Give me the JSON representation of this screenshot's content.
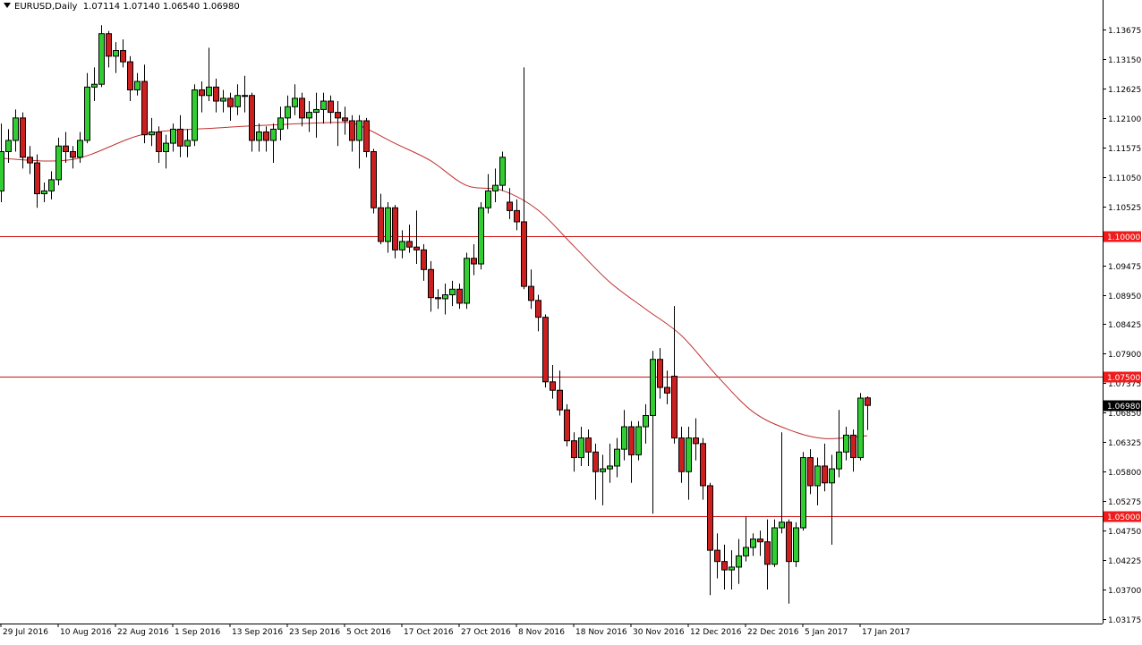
{
  "header": {
    "symbol": "EURUSD,Daily",
    "ohlc": "1.07114 1.07140 1.06540 1.06980"
  },
  "colors": {
    "bull": "#32cd32",
    "bear": "#cc2020",
    "ma": "#c03030",
    "level_line": "#cc1010",
    "current_price_bg": "#000000"
  },
  "chart_data": {
    "type": "candlestick",
    "title": "EURUSD,Daily",
    "ylim": [
      1.0305,
      1.1415
    ],
    "y_ticks": [
      "1.13675",
      "1.13150",
      "1.12625",
      "1.12100",
      "1.11575",
      "1.11050",
      "1.10525",
      "1.09475",
      "1.08950",
      "1.08425",
      "1.07900",
      "1.07375",
      "1.06850",
      "1.06325",
      "1.05800",
      "1.05275",
      "1.04750",
      "1.04225",
      "1.03700",
      "1.03175"
    ],
    "x_labels": [
      {
        "i": 0,
        "label": "29 Jul 2016"
      },
      {
        "i": 8,
        "label": "10 Aug 2016"
      },
      {
        "i": 16,
        "label": "22 Aug 2016"
      },
      {
        "i": 24,
        "label": "1 Sep 2016"
      },
      {
        "i": 32,
        "label": "13 Sep 2016"
      },
      {
        "i": 40,
        "label": "23 Sep 2016"
      },
      {
        "i": 48,
        "label": "5 Oct 2016"
      },
      {
        "i": 56,
        "label": "17 Oct 2016"
      },
      {
        "i": 64,
        "label": "27 Oct 2016"
      },
      {
        "i": 72,
        "label": "8 Nov 2016"
      },
      {
        "i": 80,
        "label": "18 Nov 2016"
      },
      {
        "i": 88,
        "label": "30 Nov 2016"
      },
      {
        "i": 96,
        "label": "12 Dec 2016"
      },
      {
        "i": 104,
        "label": "22 Dec 2016"
      },
      {
        "i": 112,
        "label": "5 Jan 2017"
      },
      {
        "i": 120,
        "label": "17 Jan 2017"
      }
    ],
    "levels": [
      {
        "value": 1.1,
        "label": "1.10000"
      },
      {
        "value": 1.075,
        "label": "1.07500"
      },
      {
        "value": 1.05,
        "label": "1.05000"
      }
    ],
    "current_price": {
      "value": 1.0698,
      "label": "1.06980"
    },
    "candles_ohlc": [
      [
        1.108,
        1.12,
        1.106,
        1.115
      ],
      [
        1.115,
        1.119,
        1.113,
        1.117
      ],
      [
        1.117,
        1.1225,
        1.115,
        1.121
      ],
      [
        1.121,
        1.122,
        1.112,
        1.114
      ],
      [
        1.114,
        1.116,
        1.111,
        1.113
      ],
      [
        1.113,
        1.1145,
        1.105,
        1.1075
      ],
      [
        1.1075,
        1.1095,
        1.106,
        1.108
      ],
      [
        1.108,
        1.1115,
        1.1065,
        1.11
      ],
      [
        1.11,
        1.1175,
        1.109,
        1.116
      ],
      [
        1.116,
        1.1185,
        1.113,
        1.115
      ],
      [
        1.115,
        1.116,
        1.112,
        1.114
      ],
      [
        1.114,
        1.1185,
        1.113,
        1.117
      ],
      [
        1.117,
        1.129,
        1.1165,
        1.1265
      ],
      [
        1.1265,
        1.13,
        1.124,
        1.127
      ],
      [
        1.127,
        1.1375,
        1.1265,
        1.136
      ],
      [
        1.136,
        1.1365,
        1.13,
        1.132
      ],
      [
        1.132,
        1.1345,
        1.129,
        1.133
      ],
      [
        1.133,
        1.135,
        1.13,
        1.131
      ],
      [
        1.131,
        1.132,
        1.124,
        1.126
      ],
      [
        1.126,
        1.129,
        1.125,
        1.1275
      ],
      [
        1.1275,
        1.1305,
        1.1165,
        1.118
      ],
      [
        1.118,
        1.121,
        1.116,
        1.1185
      ],
      [
        1.1185,
        1.1195,
        1.113,
        1.115
      ],
      [
        1.115,
        1.118,
        1.112,
        1.1165
      ],
      [
        1.1165,
        1.12,
        1.115,
        1.119
      ],
      [
        1.119,
        1.1215,
        1.114,
        1.116
      ],
      [
        1.116,
        1.119,
        1.114,
        1.117
      ],
      [
        1.117,
        1.127,
        1.116,
        1.126
      ],
      [
        1.126,
        1.1275,
        1.122,
        1.125
      ],
      [
        1.125,
        1.1335,
        1.124,
        1.1265
      ],
      [
        1.1265,
        1.128,
        1.122,
        1.124
      ],
      [
        1.124,
        1.126,
        1.122,
        1.1245
      ],
      [
        1.1245,
        1.1255,
        1.1205,
        1.123
      ],
      [
        1.123,
        1.127,
        1.1215,
        1.125
      ],
      [
        1.125,
        1.1285,
        1.122,
        1.125
      ],
      [
        1.125,
        1.1255,
        1.115,
        1.117
      ],
      [
        1.117,
        1.12,
        1.115,
        1.1185
      ],
      [
        1.1185,
        1.1195,
        1.115,
        1.117
      ],
      [
        1.117,
        1.12,
        1.113,
        1.119
      ],
      [
        1.119,
        1.123,
        1.117,
        1.121
      ],
      [
        1.121,
        1.125,
        1.119,
        1.123
      ],
      [
        1.123,
        1.127,
        1.1215,
        1.1245
      ],
      [
        1.1245,
        1.1255,
        1.1195,
        1.121
      ],
      [
        1.121,
        1.124,
        1.1185,
        1.122
      ],
      [
        1.122,
        1.1255,
        1.1175,
        1.1225
      ],
      [
        1.1225,
        1.1255,
        1.12,
        1.124
      ],
      [
        1.124,
        1.125,
        1.12,
        1.122
      ],
      [
        1.122,
        1.124,
        1.116,
        1.121
      ],
      [
        1.121,
        1.123,
        1.118,
        1.1205
      ],
      [
        1.1205,
        1.1215,
        1.115,
        1.117
      ],
      [
        1.117,
        1.1215,
        1.112,
        1.1205
      ],
      [
        1.1205,
        1.121,
        1.114,
        1.115
      ],
      [
        1.115,
        1.1155,
        1.104,
        1.105
      ],
      [
        1.105,
        1.1075,
        1.0985,
        1.099
      ],
      [
        1.099,
        1.106,
        1.097,
        1.105
      ],
      [
        1.105,
        1.1055,
        1.096,
        1.0975
      ],
      [
        1.0975,
        1.101,
        1.096,
        1.099
      ],
      [
        1.099,
        1.102,
        1.097,
        1.098
      ],
      [
        1.098,
        1.1045,
        1.095,
        1.0975
      ],
      [
        1.0975,
        1.0985,
        1.092,
        1.094
      ],
      [
        1.094,
        1.0955,
        1.0865,
        1.089
      ],
      [
        1.089,
        1.0905,
        1.087,
        1.0888
      ],
      [
        1.0888,
        1.0915,
        1.086,
        1.0895
      ],
      [
        1.0895,
        1.092,
        1.0875,
        1.0905
      ],
      [
        1.0905,
        1.0915,
        1.087,
        1.088
      ],
      [
        1.088,
        1.097,
        1.087,
        1.096
      ],
      [
        1.096,
        1.0985,
        1.093,
        1.095
      ],
      [
        1.095,
        1.106,
        1.094,
        1.105
      ],
      [
        1.105,
        1.111,
        1.104,
        1.108
      ],
      [
        1.108,
        1.112,
        1.106,
        1.109
      ],
      [
        1.109,
        1.115,
        1.108,
        1.114
      ],
      [
        1.106,
        1.1085,
        1.103,
        1.1045
      ],
      [
        1.1045,
        1.1065,
        1.101,
        1.1025
      ],
      [
        1.1025,
        1.13,
        1.0905,
        1.091
      ],
      [
        1.091,
        1.094,
        1.087,
        1.0885
      ],
      [
        1.0885,
        1.0895,
        1.083,
        1.0855
      ],
      [
        1.0855,
        1.086,
        1.073,
        1.074
      ],
      [
        1.074,
        1.077,
        1.071,
        1.0725
      ],
      [
        1.0725,
        1.076,
        1.068,
        1.069
      ],
      [
        1.069,
        1.07,
        1.0625,
        1.0635
      ],
      [
        1.0635,
        1.065,
        1.058,
        1.0605
      ],
      [
        1.0605,
        1.066,
        1.059,
        1.064
      ],
      [
        1.064,
        1.0655,
        1.059,
        1.0615
      ],
      [
        1.0615,
        1.063,
        1.053,
        1.058
      ],
      [
        1.058,
        1.061,
        1.052,
        1.0585
      ],
      [
        1.0585,
        1.063,
        1.056,
        1.059
      ],
      [
        1.059,
        1.064,
        1.057,
        1.062
      ],
      [
        1.062,
        1.069,
        1.06,
        1.066
      ],
      [
        1.066,
        1.067,
        1.056,
        1.061
      ],
      [
        1.061,
        1.067,
        1.06,
        1.066
      ],
      [
        1.066,
        1.07,
        1.063,
        1.068
      ],
      [
        1.068,
        1.0795,
        1.0505,
        1.078
      ],
      [
        1.078,
        1.08,
        1.071,
        1.073
      ],
      [
        1.073,
        1.076,
        1.07,
        1.072
      ],
      [
        1.075,
        1.0875,
        1.063,
        1.064
      ],
      [
        1.064,
        1.066,
        1.056,
        1.058
      ],
      [
        1.058,
        1.066,
        1.053,
        1.064
      ],
      [
        1.064,
        1.0675,
        1.06,
        1.063
      ],
      [
        1.063,
        1.064,
        1.053,
        1.0555
      ],
      [
        1.0555,
        1.056,
        1.036,
        1.044
      ],
      [
        1.044,
        1.047,
        1.039,
        1.042
      ],
      [
        1.042,
        1.045,
        1.037,
        1.0405
      ],
      [
        1.0405,
        1.044,
        1.037,
        1.041
      ],
      [
        1.041,
        1.046,
        1.038,
        1.043
      ],
      [
        1.043,
        1.05,
        1.042,
        1.0445
      ],
      [
        1.0445,
        1.047,
        1.043,
        1.046
      ],
      [
        1.046,
        1.0475,
        1.043,
        1.0455
      ],
      [
        1.0455,
        1.0495,
        1.037,
        1.0415
      ],
      [
        1.0415,
        1.0495,
        1.041,
        1.048
      ],
      [
        1.048,
        1.065,
        1.047,
        1.049
      ],
      [
        1.049,
        1.0495,
        1.0345,
        1.042
      ],
      [
        1.042,
        1.049,
        1.041,
        1.048
      ],
      [
        1.048,
        1.0615,
        1.0475,
        1.0605
      ],
      [
        1.0605,
        1.062,
        1.054,
        1.0555
      ],
      [
        1.0555,
        1.0605,
        1.052,
        1.059
      ],
      [
        1.059,
        1.063,
        1.0545,
        1.056
      ],
      [
        1.056,
        1.061,
        1.045,
        1.0585
      ],
      [
        1.0585,
        1.069,
        1.057,
        1.0615
      ],
      [
        1.0615,
        1.066,
        1.06,
        1.0645
      ],
      [
        1.0645,
        1.0655,
        1.058,
        1.0605
      ],
      [
        1.0605,
        1.072,
        1.06,
        1.0711
      ],
      [
        1.07114,
        1.0714,
        1.0654,
        1.0698
      ]
    ],
    "moving_average": [
      {
        "i": 0,
        "v": 1.1138
      },
      {
        "i": 10,
        "v": 1.1136
      },
      {
        "i": 20,
        "v": 1.1181
      },
      {
        "i": 30,
        "v": 1.1192
      },
      {
        "i": 37,
        "v": 1.1197
      },
      {
        "i": 47,
        "v": 1.1202
      },
      {
        "i": 50,
        "v": 1.1197
      },
      {
        "i": 55,
        "v": 1.1165
      },
      {
        "i": 60,
        "v": 1.1134
      },
      {
        "i": 65,
        "v": 1.109
      },
      {
        "i": 70,
        "v": 1.1081
      },
      {
        "i": 75,
        "v": 1.1046
      },
      {
        "i": 80,
        "v": 1.0982
      },
      {
        "i": 85,
        "v": 1.0918
      },
      {
        "i": 90,
        "v": 1.087
      },
      {
        "i": 95,
        "v": 1.0823
      },
      {
        "i": 100,
        "v": 1.0751
      },
      {
        "i": 105,
        "v": 1.0687
      },
      {
        "i": 110,
        "v": 1.0655
      },
      {
        "i": 115,
        "v": 1.0639
      },
      {
        "i": 121,
        "v": 1.0644
      }
    ]
  }
}
